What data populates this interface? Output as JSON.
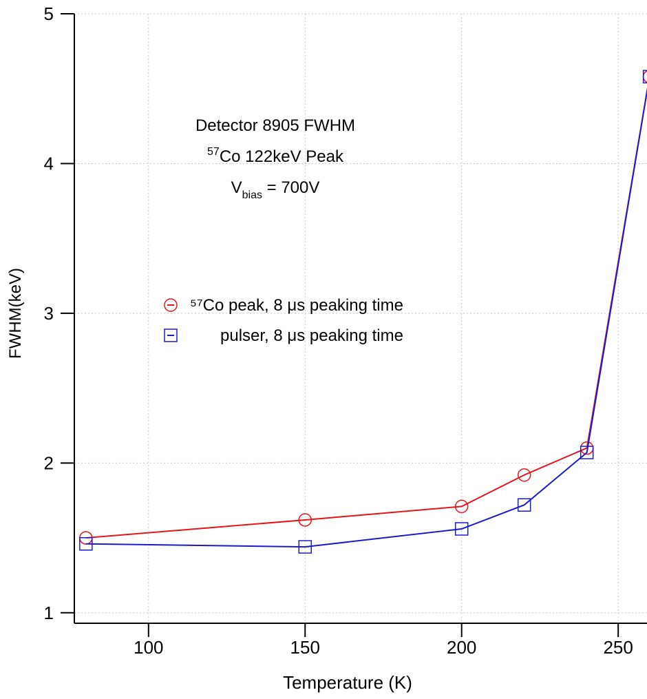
{
  "chart_data": {
    "type": "line",
    "x_label": "Temperature (K)",
    "y_label": "FWHM(keV)",
    "x": [
      80,
      150,
      200,
      220,
      240,
      260
    ],
    "series": [
      {
        "name": "⁵⁷Co peak, 8 μs peaking time",
        "color": "#e8141a",
        "marker": "circle",
        "values": [
          1.5,
          1.62,
          1.71,
          1.92,
          2.1,
          4.58
        ]
      },
      {
        "name": "pulser, 8 μs peaking time",
        "color": "#1a1ad0",
        "marker": "square",
        "values": [
          1.46,
          1.44,
          1.56,
          1.72,
          2.07,
          4.58
        ]
      }
    ],
    "annotation": [
      {
        "text": "Detector 8905 FWHM"
      },
      {
        "sup": "57",
        "text": "Co 122keV Peak"
      },
      {
        "text": "V",
        "sub": "bias",
        "after": " = 700V"
      }
    ],
    "xlim": [
      76.3,
      259.2
    ],
    "ylim": [
      0.93,
      5
    ],
    "xticks": [
      100,
      150,
      200,
      250
    ],
    "yticks": [
      1,
      2,
      3,
      4,
      5
    ],
    "grid": true
  }
}
